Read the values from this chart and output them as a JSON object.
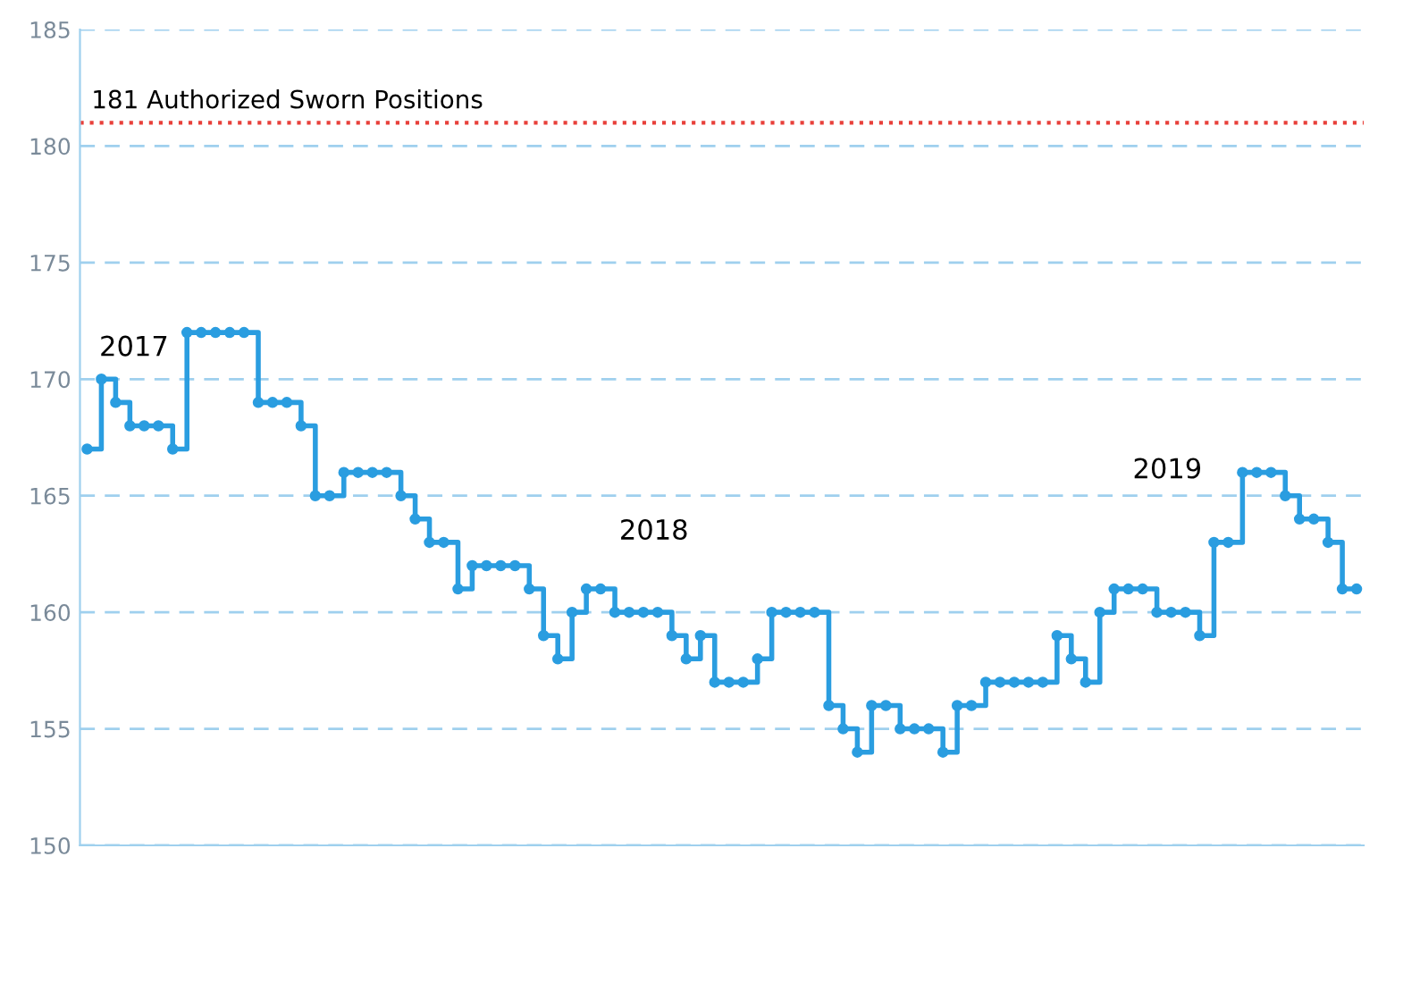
{
  "chart_data": {
    "type": "step",
    "categories": [
      null,
      null,
      null,
      null,
      null,
      null,
      null,
      null,
      null,
      null,
      null,
      null,
      null,
      null,
      null,
      null,
      null,
      null,
      null,
      null,
      null,
      null,
      null,
      null,
      null,
      null,
      null,
      null,
      null,
      null,
      null,
      null,
      null,
      null,
      null,
      null,
      null,
      null,
      null,
      null,
      null,
      null,
      null,
      null,
      null,
      null,
      null,
      null,
      null,
      null,
      null,
      null,
      null,
      null,
      null,
      null,
      null,
      null,
      null,
      null,
      null,
      null,
      null,
      null,
      null,
      null,
      null,
      null,
      null,
      null,
      null,
      null,
      null,
      null,
      null,
      null,
      null,
      null,
      null,
      null,
      null,
      null,
      null,
      null,
      null,
      null,
      null,
      null,
      null,
      null
    ],
    "series": [
      {
        "color": "#2a9de0",
        "values": [
          167,
          170,
          169,
          168,
          168,
          168,
          167,
          172,
          172,
          172,
          172,
          172,
          169,
          169,
          169,
          168,
          165,
          165,
          166,
          166,
          166,
          166,
          165,
          164,
          163,
          163,
          161,
          162,
          162,
          162,
          162,
          161,
          159,
          158,
          160,
          161,
          161,
          160,
          160,
          160,
          160,
          159,
          158,
          159,
          157,
          157,
          157,
          158,
          160,
          160,
          160,
          160,
          156,
          155,
          154,
          156,
          156,
          155,
          155,
          155,
          154,
          156,
          156,
          157,
          157,
          157,
          157,
          157,
          159,
          158,
          157,
          160,
          161,
          161,
          161,
          160,
          160,
          160,
          159,
          163,
          163,
          166,
          166,
          166,
          165,
          164,
          164,
          163,
          161,
          161
        ]
      }
    ],
    "ylim": [
      150,
      185
    ],
    "yticks": [
      150,
      155,
      160,
      165,
      170,
      175,
      180,
      185
    ],
    "grid": "y",
    "marker": "circle",
    "line_style": "solid",
    "tick_labels": "y",
    "ref_lines": [
      {
        "axis": "y",
        "value": 181,
        "label": "181 Authorized Sworn Positions",
        "color": "#e8403a",
        "line_style": "dotted"
      }
    ],
    "annotations": [
      "2017",
      "2018",
      "2019"
    ]
  }
}
